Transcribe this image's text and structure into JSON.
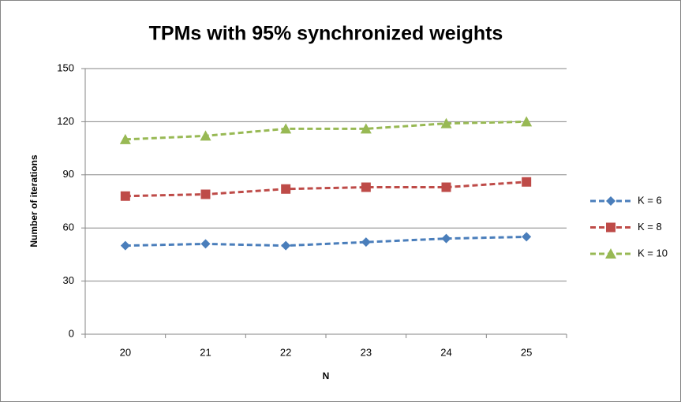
{
  "chart_data": {
    "type": "line",
    "title": "TPMs with 95% synchronized weights",
    "x_label": "N",
    "y_label": "Number of iterations",
    "categories": [
      "20",
      "21",
      "22",
      "23",
      "24",
      "25"
    ],
    "series": [
      {
        "name": "K = 6",
        "color": "#4a7ebb",
        "marker": "diamond",
        "values": [
          50,
          51,
          50,
          52,
          54,
          55
        ]
      },
      {
        "name": "K = 8",
        "color": "#be4b48",
        "marker": "square",
        "values": [
          78,
          79,
          82,
          83,
          83,
          86
        ]
      },
      {
        "name": "K = 10",
        "color": "#98b954",
        "marker": "triangle",
        "values": [
          110,
          112,
          116,
          116,
          119,
          120
        ]
      }
    ],
    "ylim": [
      0,
      150
    ],
    "yticks": [
      0,
      30,
      60,
      90,
      120,
      150
    ],
    "grid": true,
    "legend": "right"
  }
}
